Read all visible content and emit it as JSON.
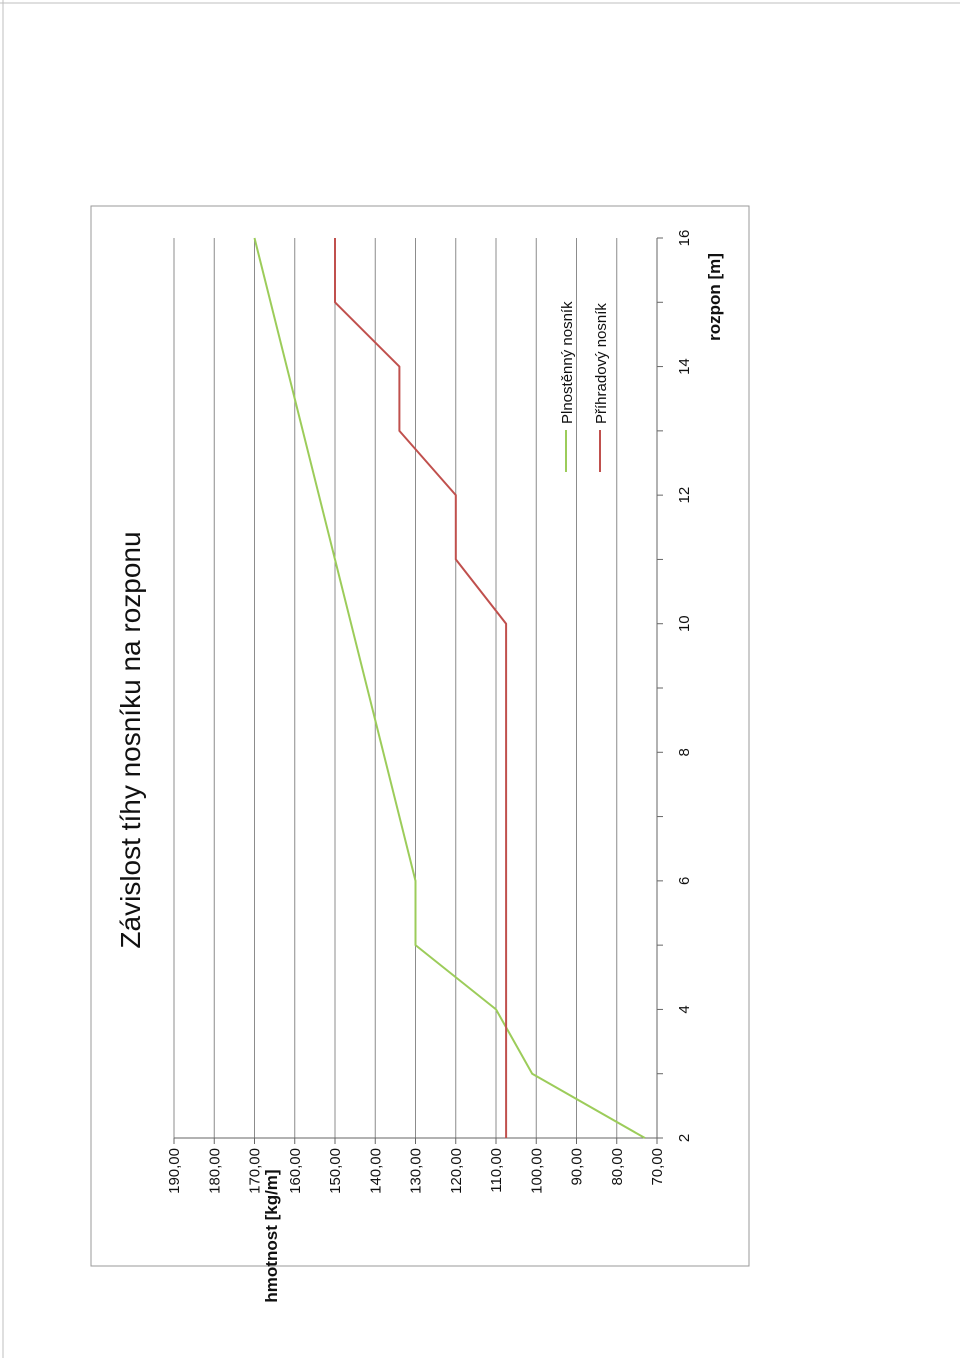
{
  "chart_data": {
    "type": "line",
    "title": "Závislost tíhy nosníku na rozponu",
    "xlabel": "rozpon [m]",
    "ylabel": "hmotnost [kg/m]",
    "xlim": [
      2,
      16
    ],
    "ylim": [
      70,
      190
    ],
    "x_ticks": [
      "2",
      "4",
      "6",
      "8",
      "10",
      "12",
      "14",
      "16"
    ],
    "y_ticks": [
      "70,00",
      "80,00",
      "90,00",
      "100,00",
      "110,00",
      "120,00",
      "130,00",
      "140,00",
      "150,00",
      "160,00",
      "170,00",
      "180,00",
      "190,00"
    ],
    "grid": true,
    "orientation": "rotated 90° counter-clockwise on the page",
    "legend_position": "bottom-right",
    "series": [
      {
        "name": "Plnostěnný nosník",
        "color": "#9ccc5a",
        "points": [
          [
            2,
            73
          ],
          [
            3,
            101
          ],
          [
            4,
            110
          ],
          [
            5,
            130
          ],
          [
            6,
            130
          ],
          [
            16,
            170
          ]
        ]
      },
      {
        "name": "Příhradový nosník",
        "color": "#c0504d",
        "points": [
          [
            2,
            107.5
          ],
          [
            10,
            107.5
          ],
          [
            11,
            120
          ],
          [
            12,
            120
          ],
          [
            13,
            134
          ],
          [
            14,
            134
          ],
          [
            15,
            150
          ],
          [
            16,
            150
          ]
        ]
      }
    ]
  }
}
